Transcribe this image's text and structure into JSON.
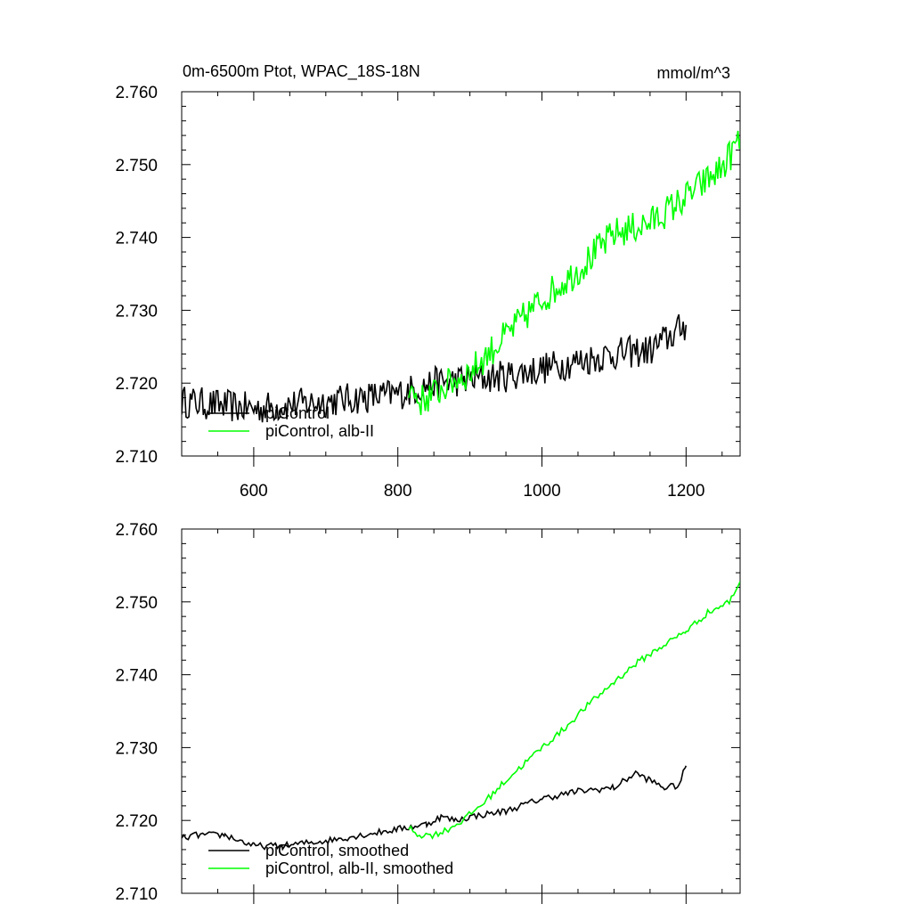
{
  "chart_data": [
    {
      "type": "line",
      "title": "0m-6500m Ptot, WPAC_18S-18N",
      "units": "mmol/m^3",
      "xlim": [
        500,
        1275
      ],
      "ylim": [
        2.71,
        2.76
      ],
      "xticks": [
        600,
        800,
        1000,
        1200
      ],
      "xtick_labels": [
        "600",
        "800",
        "1000",
        "1200"
      ],
      "yticks": [
        2.71,
        2.72,
        2.73,
        2.74,
        2.75,
        2.76
      ],
      "ytick_labels": [
        "2.710",
        "2.720",
        "2.730",
        "2.740",
        "2.750",
        "2.760"
      ],
      "legend_location": "bottom-left",
      "series": [
        {
          "name": "piControl",
          "color": "#000000",
          "x": [
            500,
            550,
            600,
            650,
            700,
            750,
            800,
            850,
            900,
            950,
            1000,
            1050,
            1100,
            1150,
            1200
          ],
          "y": [
            2.7175,
            2.717,
            2.7165,
            2.717,
            2.7175,
            2.718,
            2.7185,
            2.72,
            2.7205,
            2.721,
            2.722,
            2.723,
            2.724,
            2.7245,
            2.728
          ]
        },
        {
          "name": "piControl, alb-II",
          "color": "#00ff00",
          "x": [
            815,
            830,
            850,
            880,
            900,
            950,
            1000,
            1050,
            1100,
            1150,
            1200,
            1250,
            1275
          ],
          "y": [
            2.7195,
            2.7175,
            2.7185,
            2.7205,
            2.7215,
            2.7265,
            2.7315,
            2.7355,
            2.7405,
            2.742,
            2.7455,
            2.7495,
            2.7535
          ]
        }
      ]
    },
    {
      "type": "line",
      "xlim": [
        500,
        1275
      ],
      "ylim": [
        2.71,
        2.76
      ],
      "xticks": [
        600,
        800,
        1000,
        1200
      ],
      "yticks": [
        2.71,
        2.72,
        2.73,
        2.74,
        2.75,
        2.76
      ],
      "ytick_labels": [
        "2.710",
        "2.720",
        "2.730",
        "2.740",
        "2.750",
        "2.760"
      ],
      "legend_location": "bottom-left",
      "series": [
        {
          "name": "piControl, smoothed",
          "color": "#000000",
          "x": [
            500,
            520,
            560,
            600,
            640,
            680,
            700,
            750,
            800,
            840,
            860,
            880,
            900,
            950,
            1000,
            1050,
            1100,
            1130,
            1150,
            1170,
            1190,
            1200
          ],
          "y": [
            2.7175,
            2.718,
            2.718,
            2.7165,
            2.7165,
            2.717,
            2.7172,
            2.718,
            2.7188,
            2.7195,
            2.7205,
            2.72,
            2.7205,
            2.7213,
            2.723,
            2.724,
            2.7245,
            2.7265,
            2.7255,
            2.7245,
            2.7248,
            2.7275
          ]
        },
        {
          "name": "piControl, alb-II, smoothed",
          "color": "#00ff00",
          "x": [
            815,
            830,
            850,
            870,
            890,
            920,
            950,
            980,
            1000,
            1030,
            1060,
            1100,
            1130,
            1160,
            1200,
            1230,
            1260,
            1275
          ],
          "y": [
            2.719,
            2.718,
            2.718,
            2.7188,
            2.72,
            2.7225,
            2.7255,
            2.7282,
            2.73,
            2.7325,
            2.7355,
            2.739,
            2.7415,
            2.7435,
            2.746,
            2.7485,
            2.75,
            2.7528
          ]
        }
      ]
    }
  ]
}
